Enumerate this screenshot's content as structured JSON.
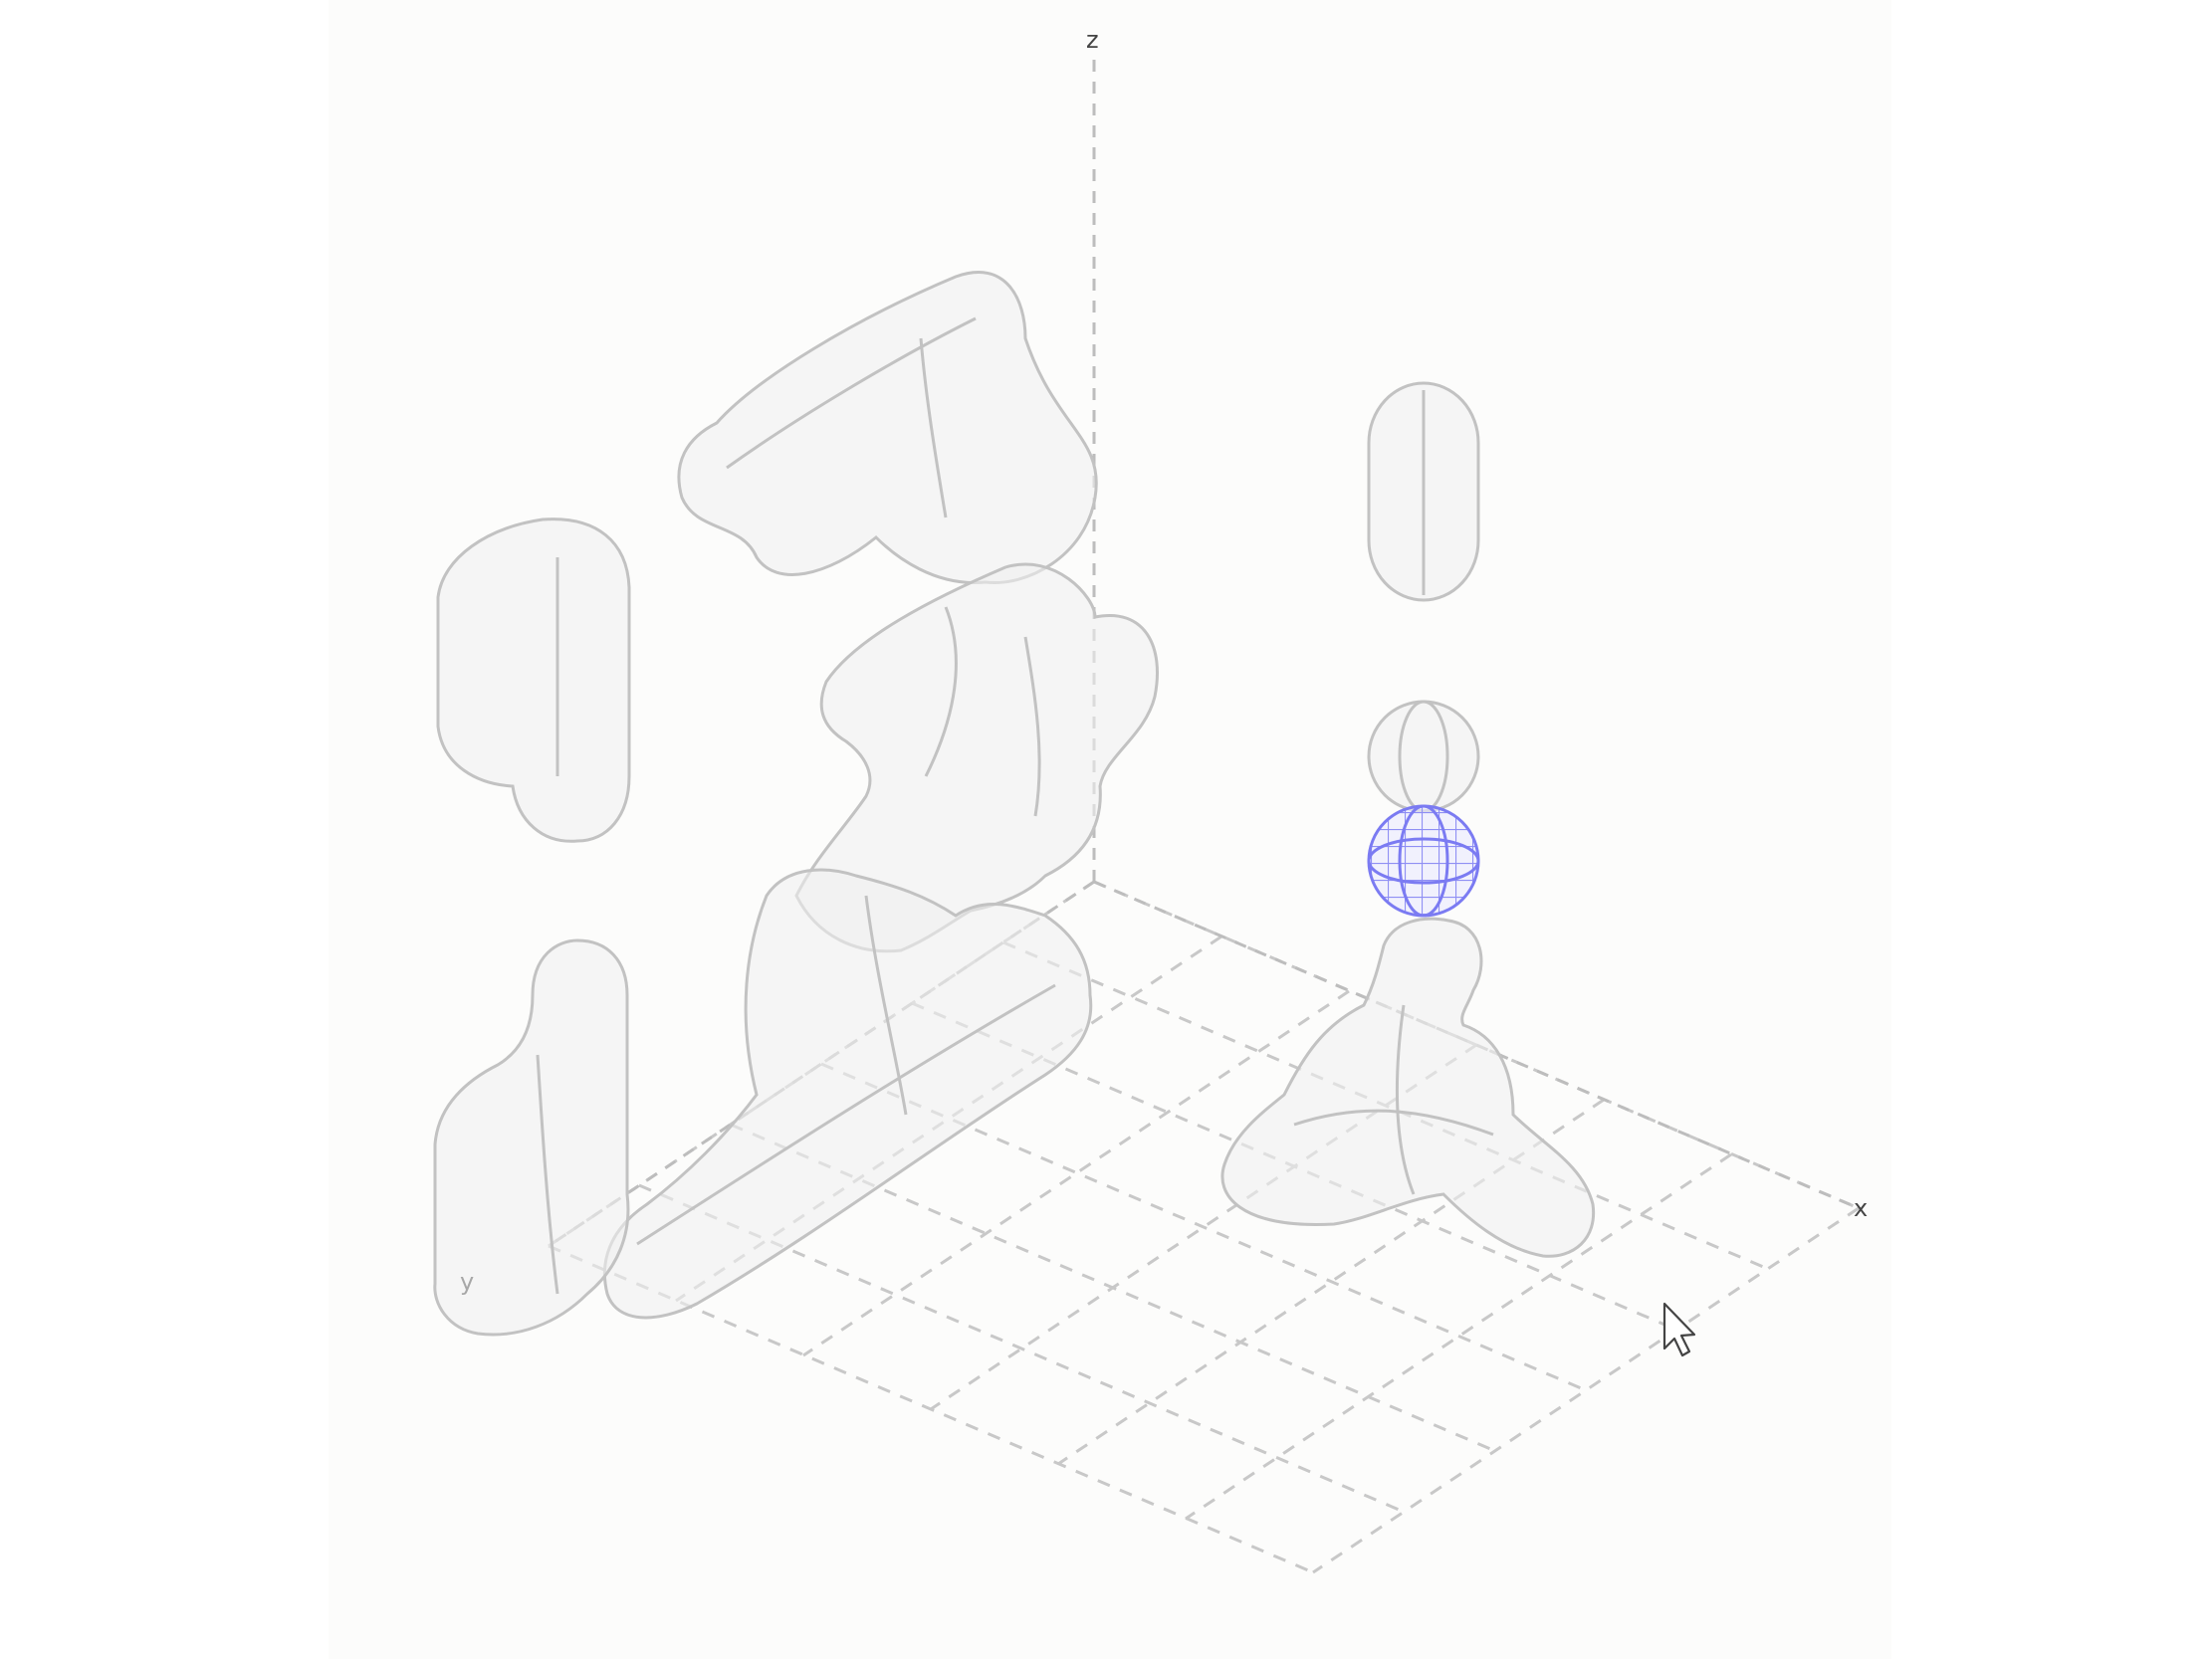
{
  "viewer": {
    "axes": {
      "x": "x",
      "y": "y",
      "z": "z"
    },
    "colors": {
      "background": "#fcfcfb",
      "mesh": "#c2c2c2",
      "mesh_line": "#cfcfcf",
      "selected_mesh": "#7b7bf2",
      "grid": "#c8c8c8"
    },
    "selected_object": "small-sphere-blue",
    "cursor_icon": "arrow-pointer-icon"
  }
}
